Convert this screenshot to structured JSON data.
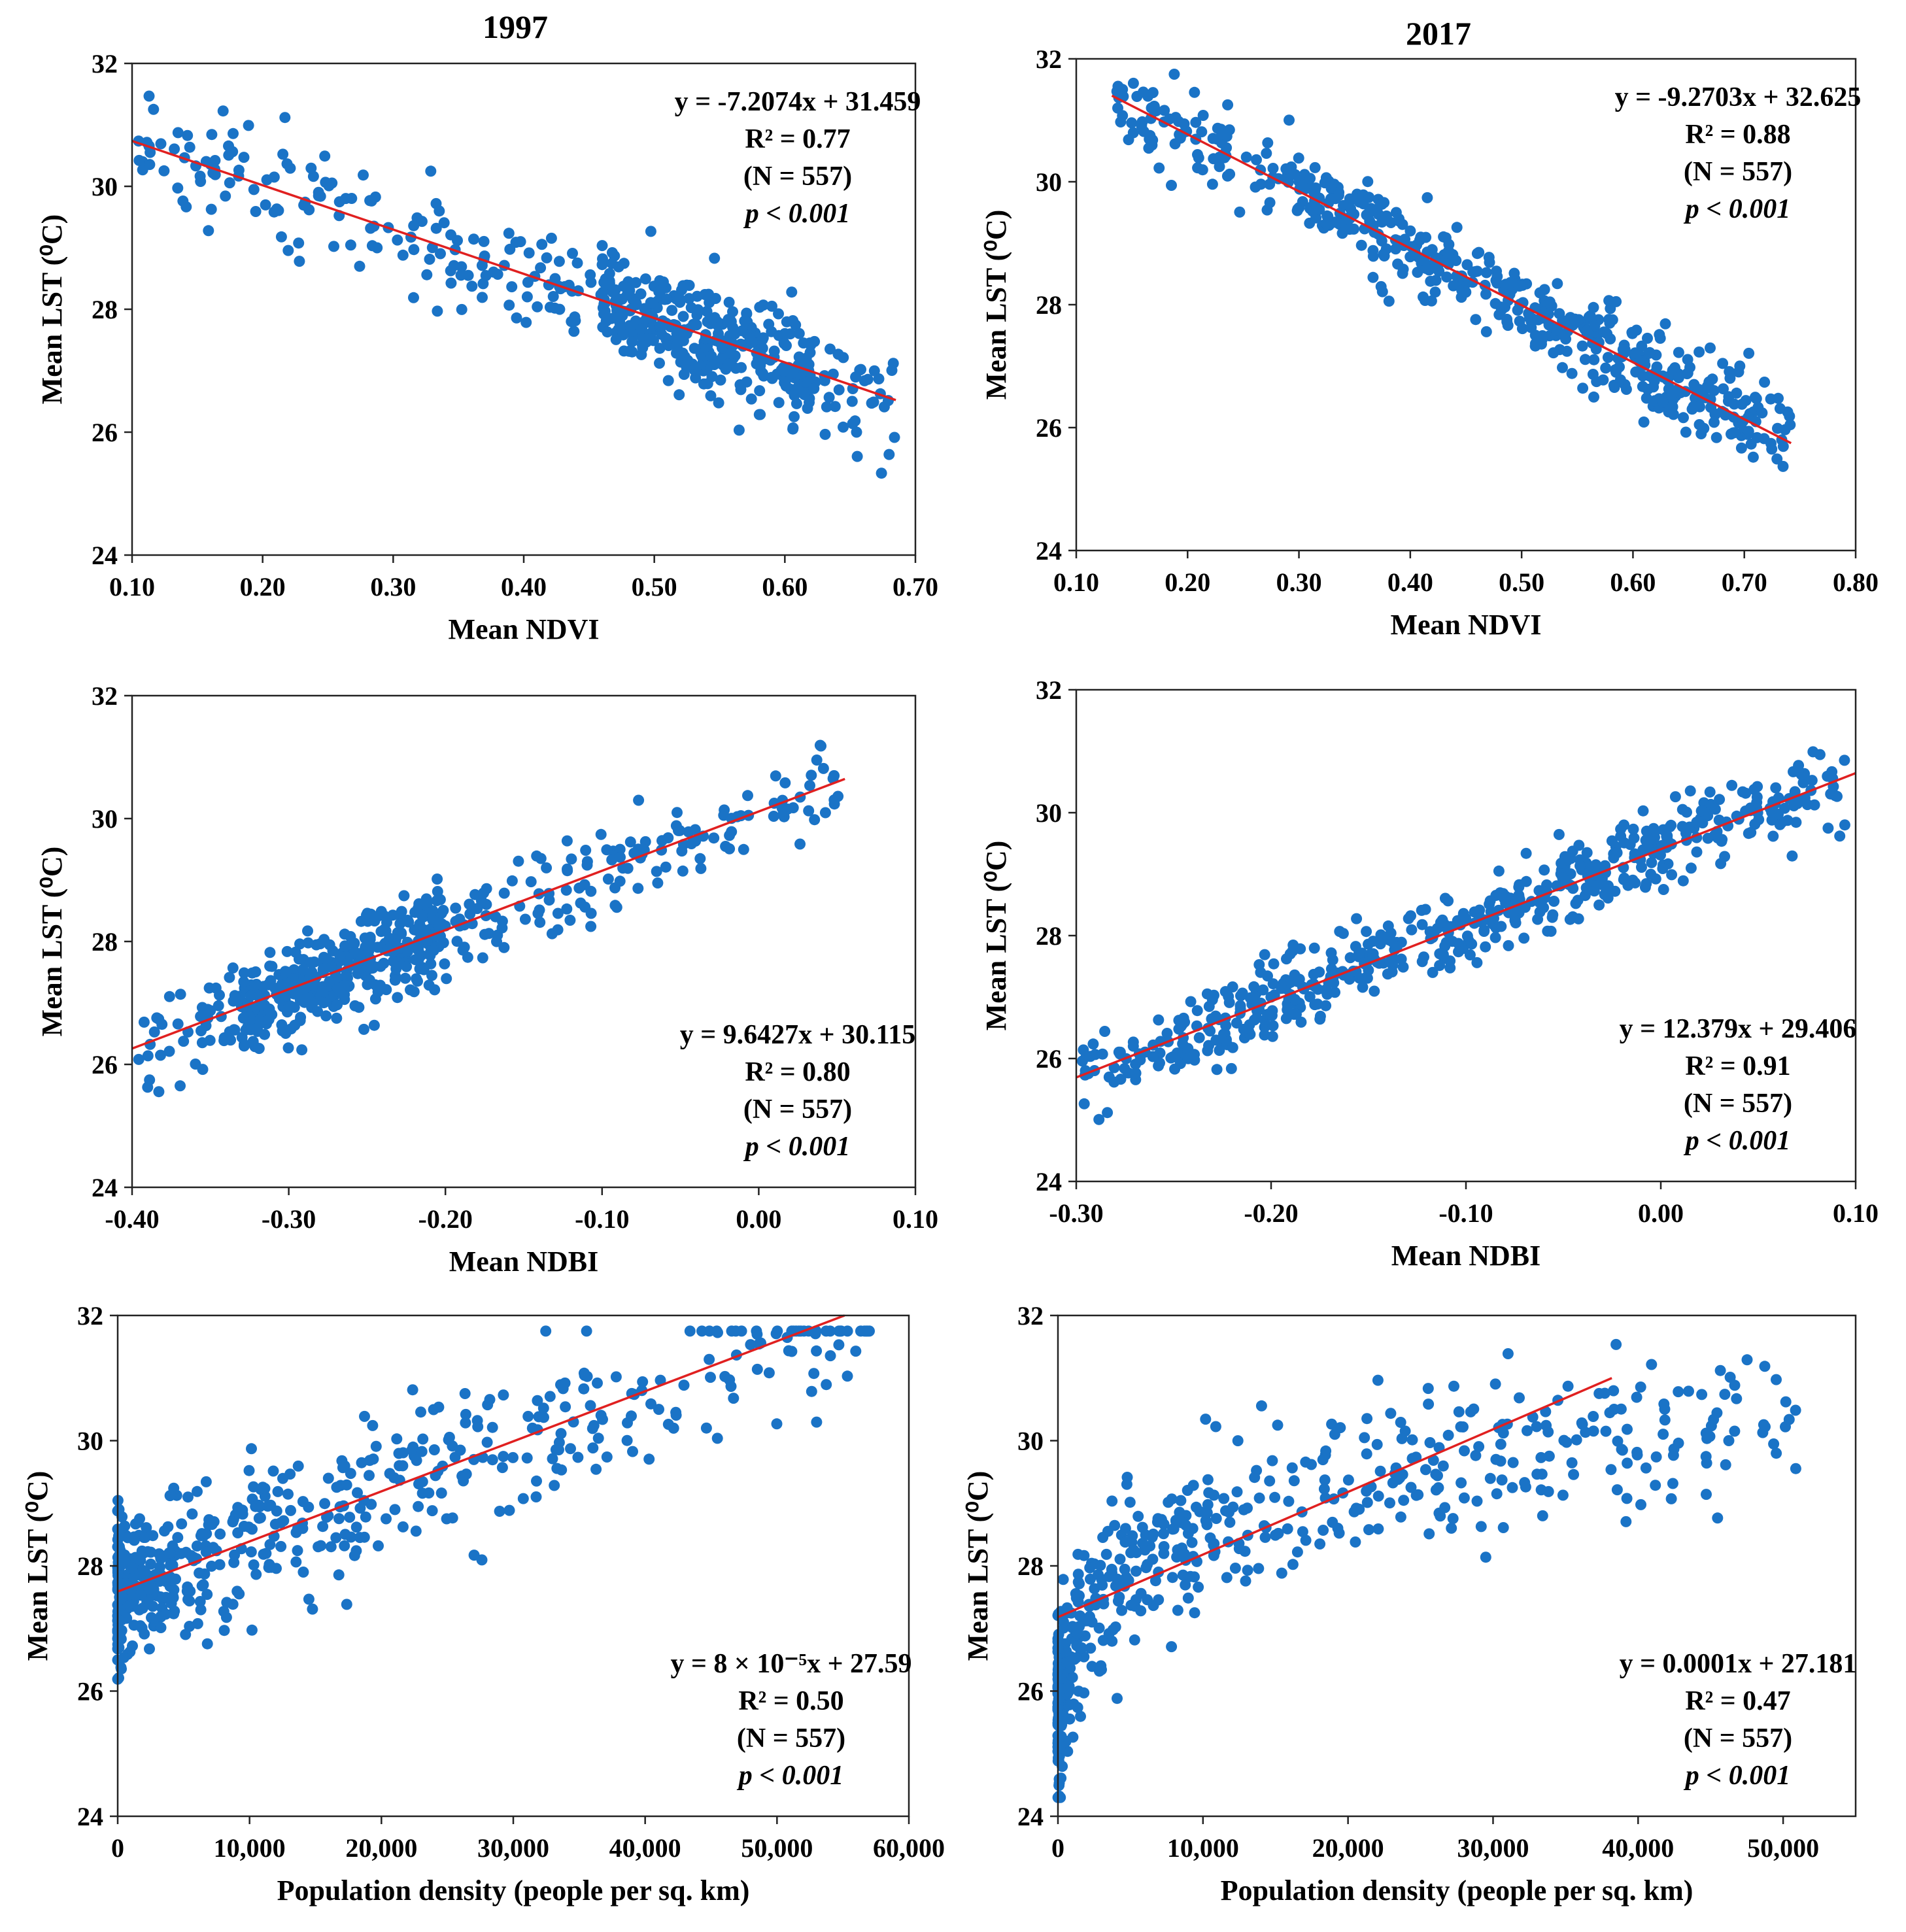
{
  "column_titles": [
    "1997",
    "2017"
  ],
  "colors": {
    "points": "#1a73c6",
    "trend": "#e02020",
    "axis": "#000000"
  },
  "chart_data": [
    {
      "type": "scatter",
      "year": "1997",
      "xlabel": "Mean NDVI",
      "ylabel": "Mean LST (⁰C)",
      "xlim": [
        0.1,
        0.7
      ],
      "ylim": [
        24,
        32
      ],
      "xticks": [
        0.1,
        0.2,
        0.3,
        0.4,
        0.5,
        0.6,
        0.7
      ],
      "xtick_labels": [
        "0.10",
        "0.20",
        "0.30",
        "0.40",
        "0.50",
        "0.60",
        "0.70"
      ],
      "yticks": [
        24,
        26,
        28,
        30,
        32
      ],
      "yticks_labels": [
        "24",
        "26",
        "28",
        "30",
        "32"
      ],
      "trend": {
        "slope": -7.2074,
        "intercept": 31.459,
        "x_range": [
          0.1,
          0.685
        ]
      },
      "annotation": [
        "y = -7.2074x + 31.459",
        "R² = 0.77",
        "(N = 557)",
        "p < 0.001"
      ],
      "annotation_position": "top-right",
      "points": {
        "n": 557,
        "x_range": [
          0.105,
          0.685
        ],
        "noise": 0.45,
        "seed": 11,
        "dense_range": [
          0.46,
          0.62
        ],
        "dense_share": 0.5
      }
    },
    {
      "type": "scatter",
      "year": "2017",
      "xlabel": "Mean NDVI",
      "ylabel": "Mean LST (⁰C)",
      "xlim": [
        0.1,
        0.8
      ],
      "ylim": [
        24,
        32
      ],
      "xticks": [
        0.1,
        0.2,
        0.3,
        0.4,
        0.5,
        0.6,
        0.7,
        0.8
      ],
      "xtick_labels": [
        "0.10",
        "0.20",
        "0.30",
        "0.40",
        "0.50",
        "0.60",
        "0.70",
        "0.80"
      ],
      "yticks": [
        24,
        26,
        28,
        30,
        32
      ],
      "yticks_labels": [
        "24",
        "26",
        "28",
        "30",
        "32"
      ],
      "trend": {
        "slope": -9.2703,
        "intercept": 32.625,
        "x_range": [
          0.132,
          0.742
        ]
      },
      "annotation": [
        "y = -9.2703x + 32.625",
        "R² = 0.88",
        "(N = 557)",
        "p < 0.001"
      ],
      "annotation_position": "top-right",
      "points": {
        "n": 557,
        "x_range": [
          0.135,
          0.742
        ],
        "noise": 0.35,
        "seed": 23,
        "dense_range": [
          0.3,
          0.7
        ],
        "dense_share": 0.4
      }
    },
    {
      "type": "scatter",
      "year": "1997",
      "xlabel": "Mean NDBI",
      "ylabel": "Mean LST (⁰C)",
      "xlim": [
        -0.4,
        0.1
      ],
      "ylim": [
        24,
        32
      ],
      "xticks": [
        -0.4,
        -0.3,
        -0.2,
        -0.1,
        0.0,
        0.1
      ],
      "xtick_labels": [
        "-0.40",
        "-0.30",
        "-0.20",
        "-0.10",
        "0.00",
        "0.10"
      ],
      "yticks": [
        24,
        26,
        28,
        30,
        32
      ],
      "yticks_labels": [
        "24",
        "26",
        "28",
        "30",
        "32"
      ],
      "trend": {
        "slope": 9.6427,
        "intercept": 30.115,
        "x_range": [
          -0.4,
          0.055
        ]
      },
      "annotation": [
        "y = 9.6427x + 30.115",
        "R² = 0.80",
        "(N = 557)",
        "p < 0.001"
      ],
      "annotation_position": "bottom-right",
      "points": {
        "n": 557,
        "x_range": [
          -0.398,
          0.055
        ],
        "noise": 0.38,
        "seed": 37,
        "dense_range": [
          -0.33,
          -0.2
        ],
        "dense_share": 0.5
      }
    },
    {
      "type": "scatter",
      "year": "2017",
      "xlabel": "Mean NDBI",
      "ylabel": "Mean LST (⁰C)",
      "xlim": [
        -0.3,
        0.1
      ],
      "ylim": [
        24,
        32
      ],
      "xticks": [
        -0.3,
        -0.2,
        -0.1,
        0.0,
        0.1
      ],
      "xtick_labels": [
        "-0.30",
        "-0.20",
        "-0.10",
        "0.00",
        "0.10"
      ],
      "yticks": [
        24,
        26,
        28,
        30,
        32
      ],
      "yticks_labels": [
        "24",
        "26",
        "28",
        "30",
        "32"
      ],
      "trend": {
        "slope": 12.379,
        "intercept": 29.406,
        "x_range": [
          -0.3,
          0.1
        ]
      },
      "annotation": [
        "y = 12.379x + 29.406",
        "R² = 0.91",
        "(N = 557)",
        "p < 0.001"
      ],
      "annotation_position": "bottom-right",
      "points": {
        "n": 557,
        "x_range": [
          -0.298,
          0.098
        ],
        "noise": 0.33,
        "seed": 41,
        "dense_range": [
          -0.25,
          0.05
        ],
        "dense_share": 0.3
      }
    },
    {
      "type": "scatter",
      "year": "1997",
      "xlabel": "Population density (people per sq. km)",
      "ylabel": "Mean LST (⁰C)",
      "xlim": [
        0,
        60000
      ],
      "ylim": [
        24,
        32
      ],
      "xticks": [
        0,
        10000,
        20000,
        30000,
        40000,
        50000,
        60000
      ],
      "xtick_labels": [
        "0",
        "10,000",
        "20,000",
        "30,000",
        "40,000",
        "50,000",
        "60,000"
      ],
      "yticks": [
        24,
        26,
        28,
        30,
        32
      ],
      "yticks_labels": [
        "24",
        "26",
        "28",
        "30",
        "32"
      ],
      "trend": {
        "slope": 8e-05,
        "intercept": 27.59,
        "x_range": [
          0,
          55125
        ]
      },
      "annotation": [
        "y = 8 × 10⁻⁵x + 27.59",
        "R² = 0.50",
        "(N = 557)",
        "p < 0.001"
      ],
      "annotation_position": "bottom-right",
      "points": {
        "n": 557,
        "x_range": [
          0,
          57000
        ],
        "noise": 0.6,
        "seed": 53,
        "skew": true
      }
    },
    {
      "type": "scatter",
      "year": "2017",
      "xlabel": "Population density (people per sq. km)",
      "ylabel": "Mean LST (⁰C)",
      "xlim": [
        0,
        55000
      ],
      "ylim": [
        24,
        32
      ],
      "xticks": [
        0,
        10000,
        20000,
        30000,
        40000,
        50000
      ],
      "xtick_labels": [
        "0",
        "10,000",
        "20,000",
        "30,000",
        "40,000",
        "50,000"
      ],
      "yticks": [
        24,
        26,
        28,
        30,
        32
      ],
      "yticks_labels": [
        "24",
        "26",
        "28",
        "30",
        "32"
      ],
      "trend": {
        "slope": 0.0001,
        "intercept": 27.181,
        "x_range": [
          0,
          38190
        ]
      },
      "annotation": [
        "y = 0.0001x + 27.181",
        "R² = 0.47",
        "(N = 557)",
        "p < 0.001"
      ],
      "annotation_position": "bottom-right",
      "points": {
        "n": 557,
        "x_range": [
          0,
          51000
        ],
        "noise": 0.6,
        "seed": 67,
        "skew": true,
        "log_shape": true
      }
    }
  ]
}
